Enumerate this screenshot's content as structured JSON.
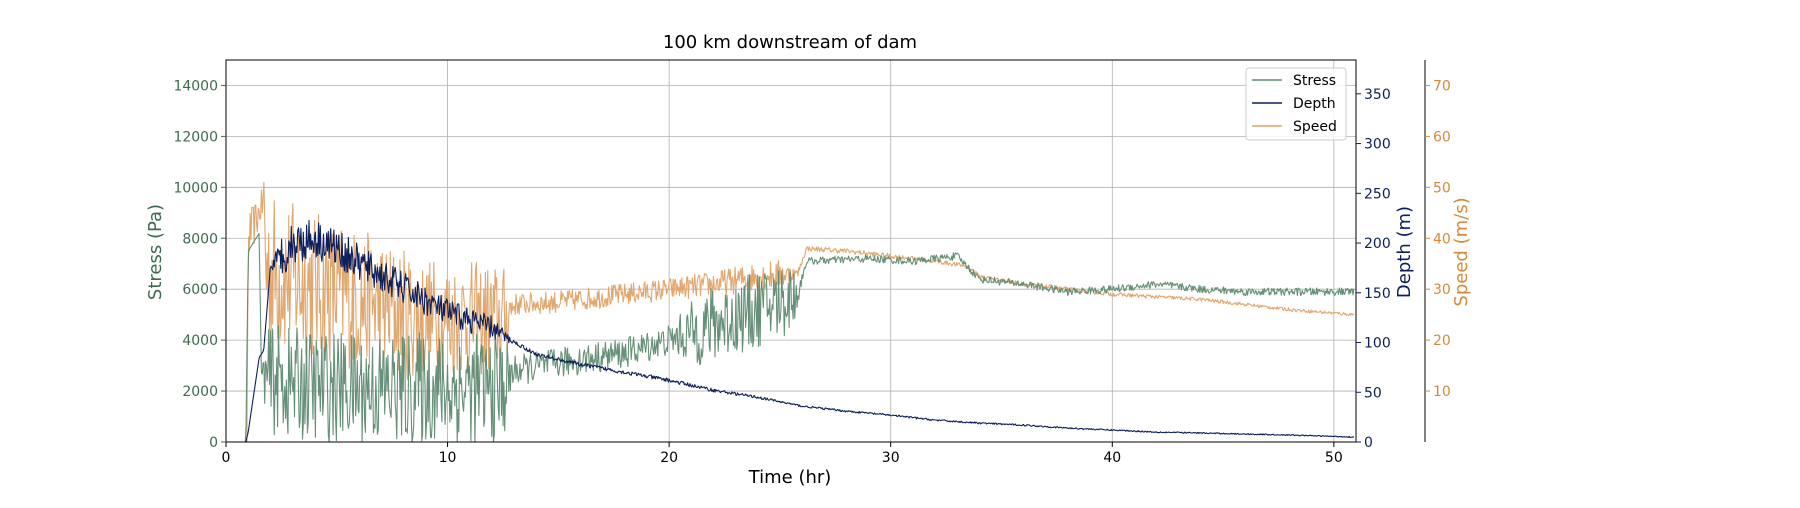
{
  "chart_data": {
    "type": "line",
    "title": "100 km downstream of dam",
    "xlabel": "Time (hr)",
    "xlim": [
      0,
      51
    ],
    "xticks": [
      0,
      10,
      20,
      30,
      40,
      50
    ],
    "grid": true,
    "legend_position": "top-right",
    "axes": {
      "stress": {
        "label": "Stress (Pa)",
        "color": "#3d6b4f",
        "ylim": [
          0,
          15000
        ],
        "ticks": [
          0,
          2000,
          4000,
          6000,
          8000,
          10000,
          12000,
          14000
        ],
        "side": "left"
      },
      "depth": {
        "label": "Depth (m)",
        "color": "#0d1f5c",
        "ylim": [
          0,
          384
        ],
        "ticks": [
          0,
          50,
          100,
          150,
          200,
          250,
          300,
          350
        ],
        "side": "right"
      },
      "speed": {
        "label": "Speed (m/s)",
        "color": "#d6893a",
        "ylim": [
          0,
          75
        ],
        "ticks": [
          10,
          20,
          30,
          40,
          50,
          60,
          70
        ],
        "side": "right-outer"
      }
    },
    "series": [
      {
        "name": "Stress",
        "axis": "stress",
        "color": "#5e8a70",
        "noise": [
          [
            0,
            0
          ],
          [
            1.5,
            0
          ],
          [
            2,
            2200
          ],
          [
            12.5,
            2200
          ],
          [
            13,
            600
          ],
          [
            20,
            600
          ],
          [
            21.5,
            1500
          ],
          [
            25.5,
            1500
          ],
          [
            26,
            150
          ],
          [
            50.9,
            150
          ]
        ],
        "points": [
          [
            0,
            0
          ],
          [
            0.9,
            0
          ],
          [
            1.0,
            7500
          ],
          [
            1.5,
            8200
          ],
          [
            1.6,
            2600
          ],
          [
            3,
            2300
          ],
          [
            6,
            2100
          ],
          [
            9,
            2100
          ],
          [
            12.5,
            2100
          ],
          [
            13,
            2800
          ],
          [
            15,
            3100
          ],
          [
            18,
            3500
          ],
          [
            20,
            4000
          ],
          [
            22,
            4600
          ],
          [
            24,
            5200
          ],
          [
            25.8,
            5800
          ],
          [
            26.2,
            7100
          ],
          [
            29,
            7200
          ],
          [
            31,
            7100
          ],
          [
            33,
            7300
          ],
          [
            34,
            6400
          ],
          [
            36,
            6200
          ],
          [
            38,
            5900
          ],
          [
            40,
            6000
          ],
          [
            42,
            6200
          ],
          [
            44,
            6000
          ],
          [
            46,
            5900
          ],
          [
            48,
            5900
          ],
          [
            50.9,
            5900
          ]
        ]
      },
      {
        "name": "Depth",
        "axis": "depth",
        "color": "#0d1f5c",
        "noise": [
          [
            0,
            0
          ],
          [
            2,
            0
          ],
          [
            2.5,
            22
          ],
          [
            12,
            12
          ],
          [
            13,
            2
          ],
          [
            20,
            2
          ],
          [
            26,
            1
          ],
          [
            50.9,
            0.5
          ]
        ],
        "points": [
          [
            0,
            0
          ],
          [
            0.9,
            0
          ],
          [
            1.0,
            10
          ],
          [
            1.2,
            40
          ],
          [
            1.5,
            85
          ],
          [
            1.7,
            92
          ],
          [
            2,
            175
          ],
          [
            3,
            200
          ],
          [
            4,
            205
          ],
          [
            5,
            195
          ],
          [
            6,
            180
          ],
          [
            8,
            155
          ],
          [
            10,
            130
          ],
          [
            12,
            115
          ],
          [
            12.8,
            103
          ],
          [
            14,
            88
          ],
          [
            16,
            78
          ],
          [
            18,
            70
          ],
          [
            20,
            62
          ],
          [
            22,
            52
          ],
          [
            24,
            45
          ],
          [
            26,
            36
          ],
          [
            28,
            31
          ],
          [
            30,
            27
          ],
          [
            32,
            22
          ],
          [
            34,
            19
          ],
          [
            36,
            17
          ],
          [
            38,
            14
          ],
          [
            40,
            12
          ],
          [
            42,
            10
          ],
          [
            44,
            9
          ],
          [
            46,
            8
          ],
          [
            48,
            7
          ],
          [
            50.9,
            5
          ]
        ]
      },
      {
        "name": "Speed",
        "axis": "speed",
        "color": "#dfa266",
        "noise": [
          [
            0,
            0
          ],
          [
            0.95,
            0
          ],
          [
            1.05,
            5
          ],
          [
            1.6,
            3
          ],
          [
            1.8,
            16
          ],
          [
            10,
            12
          ],
          [
            12.5,
            11
          ],
          [
            13,
            2.2
          ],
          [
            20,
            2.2
          ],
          [
            25,
            3
          ],
          [
            26,
            0.5
          ],
          [
            50.9,
            0.3
          ]
        ],
        "points": [
          [
            0,
            0
          ],
          [
            0.95,
            0
          ],
          [
            1.0,
            40
          ],
          [
            1.5,
            45
          ],
          [
            1.7,
            48
          ],
          [
            1.8,
            34
          ],
          [
            3,
            32
          ],
          [
            6,
            28
          ],
          [
            9,
            24
          ],
          [
            12.5,
            24
          ],
          [
            13,
            27
          ],
          [
            15,
            27.5
          ],
          [
            18,
            29
          ],
          [
            20,
            30
          ],
          [
            22,
            31
          ],
          [
            24,
            32.5
          ],
          [
            25.8,
            33
          ],
          [
            26.2,
            38
          ],
          [
            28,
            37.5
          ],
          [
            30,
            36.5
          ],
          [
            32,
            35.5
          ],
          [
            33.5,
            34.5
          ],
          [
            34,
            32.5
          ],
          [
            36,
            31
          ],
          [
            38,
            30
          ],
          [
            40,
            29
          ],
          [
            42,
            28.5
          ],
          [
            44,
            28
          ],
          [
            46,
            27
          ],
          [
            48,
            26
          ],
          [
            50.9,
            25
          ]
        ]
      }
    ]
  }
}
